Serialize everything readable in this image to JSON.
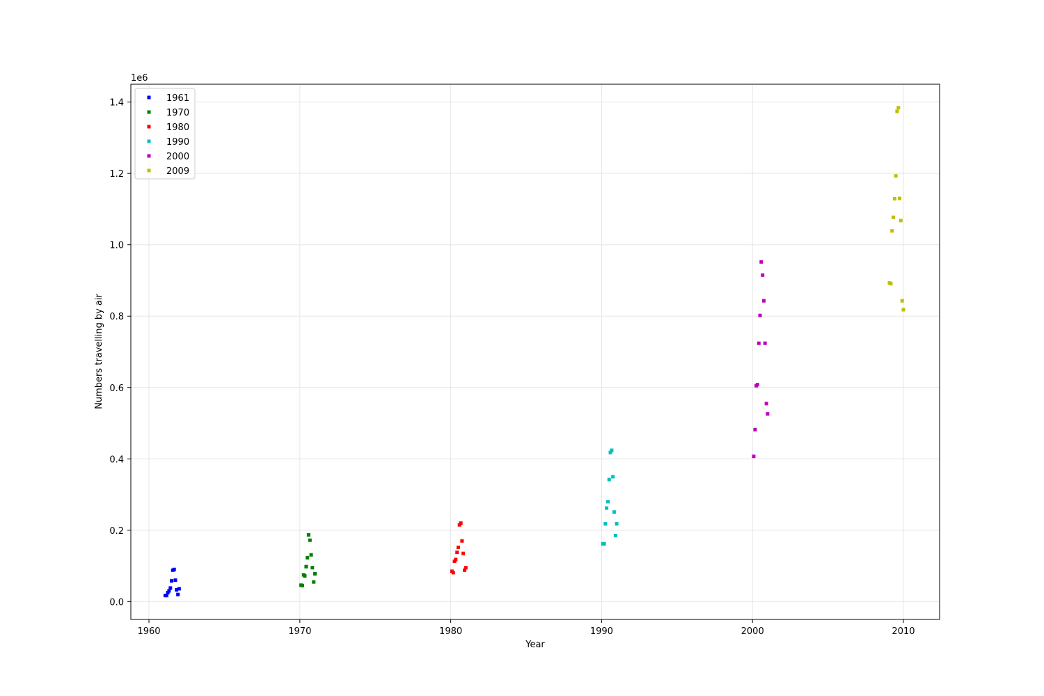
{
  "chart_data": {
    "type": "scatter",
    "title": "",
    "xlabel": "Year",
    "ylabel": "Numbers travelling by air",
    "y_offset_text": "1e6",
    "y_scale_multiplier": 1000000,
    "xlim": [
      1958.8,
      2012.4
    ],
    "ylim": [
      -50000,
      1450000
    ],
    "x_ticks": [
      1960,
      1970,
      1980,
      1990,
      2000,
      2010
    ],
    "x_tick_labels": [
      "1960",
      "1970",
      "1980",
      "1990",
      "2000",
      "2010"
    ],
    "y_ticks": [
      0,
      200000,
      400000,
      600000,
      800000,
      1000000,
      1200000,
      1400000
    ],
    "y_tick_labels": [
      "0.0",
      "0.2",
      "0.4",
      "0.6",
      "0.8",
      "1.0",
      "1.2",
      "1.4"
    ],
    "grid": true,
    "legend_position": "top-left",
    "series": [
      {
        "name": "1961",
        "color": "#0000ff",
        "x": [
          1961.08,
          1961.17,
          1961.25,
          1961.33,
          1961.42,
          1961.5,
          1961.58,
          1961.67,
          1961.75,
          1961.83,
          1961.92,
          1962.0
        ],
        "y": [
          17000,
          17000,
          25000,
          30000,
          38000,
          58000,
          88000,
          90000,
          60000,
          33000,
          20000,
          36000
        ]
      },
      {
        "name": "1970",
        "color": "#008000",
        "x": [
          1970.08,
          1970.17,
          1970.25,
          1970.33,
          1970.42,
          1970.5,
          1970.58,
          1970.67,
          1970.75,
          1970.83,
          1970.92,
          1971.0
        ],
        "y": [
          46000,
          45000,
          75000,
          72000,
          98000,
          123000,
          187000,
          172000,
          131000,
          95000,
          55000,
          78000
        ]
      },
      {
        "name": "1980",
        "color": "#ff0000",
        "x": [
          1980.08,
          1980.17,
          1980.25,
          1980.33,
          1980.42,
          1980.5,
          1980.58,
          1980.67,
          1980.75,
          1980.83,
          1980.92,
          1981.0
        ],
        "y": [
          85000,
          81000,
          113000,
          118000,
          138000,
          152000,
          215000,
          220000,
          170000,
          135000,
          88000,
          95000
        ]
      },
      {
        "name": "1990",
        "color": "#00bfbf",
        "x": [
          1990.08,
          1990.17,
          1990.25,
          1990.33,
          1990.42,
          1990.5,
          1990.58,
          1990.67,
          1990.75,
          1990.83,
          1990.92,
          1991.0
        ],
        "y": [
          162000,
          162000,
          218000,
          262000,
          280000,
          342000,
          418000,
          424000,
          350000,
          251000,
          185000,
          218000
        ]
      },
      {
        "name": "2000",
        "color": "#bf00bf",
        "x": [
          2000.08,
          2000.17,
          2000.25,
          2000.33,
          2000.42,
          2000.5,
          2000.58,
          2000.67,
          2000.75,
          2000.83,
          2000.92,
          2001.0
        ],
        "y": [
          407000,
          482000,
          605000,
          608000,
          724000,
          802000,
          952000,
          915000,
          843000,
          724000,
          555000,
          526000
        ]
      },
      {
        "name": "2009",
        "color": "#bfbf00",
        "x": [
          2009.08,
          2009.17,
          2009.25,
          2009.33,
          2009.42,
          2009.5,
          2009.58,
          2009.67,
          2009.75,
          2009.83,
          2009.92,
          2010.0
        ],
        "y": [
          893000,
          891000,
          1039000,
          1077000,
          1129000,
          1193000,
          1374000,
          1384000,
          1130000,
          1068000,
          843000,
          818000
        ]
      }
    ]
  }
}
